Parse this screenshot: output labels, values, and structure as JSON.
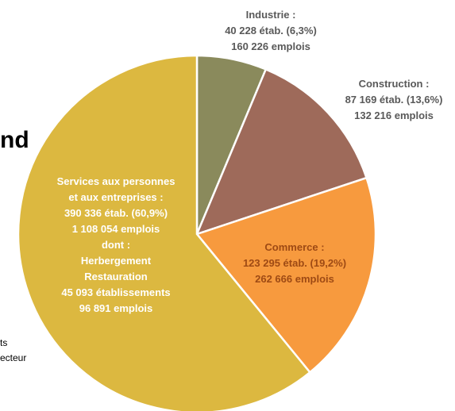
{
  "page_fragments": {
    "heading_cut": "nd",
    "left_line_1": "ts",
    "left_line_2": "ecteur"
  },
  "chart_data": {
    "type": "pie",
    "title": "",
    "start_angle_deg": 0,
    "direction": "clockwise",
    "slices": [
      {
        "name": "Industrie",
        "etab": 40228,
        "percent": 6.3,
        "emplois": 160226,
        "color": "#8a8a5c",
        "text_color": "#595959",
        "labels": [
          "Industrie :",
          "40 228 étab. (6,3%)",
          "160 226 emplois"
        ]
      },
      {
        "name": "Construction",
        "etab": 87169,
        "percent": 13.6,
        "emplois": 132216,
        "color": "#9e6a5a",
        "text_color": "#595959",
        "labels": [
          "Construction :",
          "87 169 étab. (13,6%)",
          "132 216 emplois"
        ]
      },
      {
        "name": "Commerce",
        "etab": 123295,
        "percent": 19.2,
        "emplois": 262666,
        "color": "#f79a3e",
        "text_color": "#9e4a14",
        "labels": [
          "Commerce :",
          "123 295 étab. (19,2%)",
          "262 666 emplois"
        ]
      },
      {
        "name": "Services aux personnes et aux entreprises",
        "etab": 390336,
        "percent": 60.9,
        "emplois": 1108054,
        "color": "#dcb840",
        "text_color": "#ffffff",
        "labels": [
          "Services aux personnes",
          "et aux entreprises :",
          "390 336 étab. (60,9%)",
          "1 108 054 emplois",
          "dont :",
          "Herbergement",
          "Restauration",
          "45 093 établissements",
          "96 891 emplois"
        ]
      }
    ]
  }
}
